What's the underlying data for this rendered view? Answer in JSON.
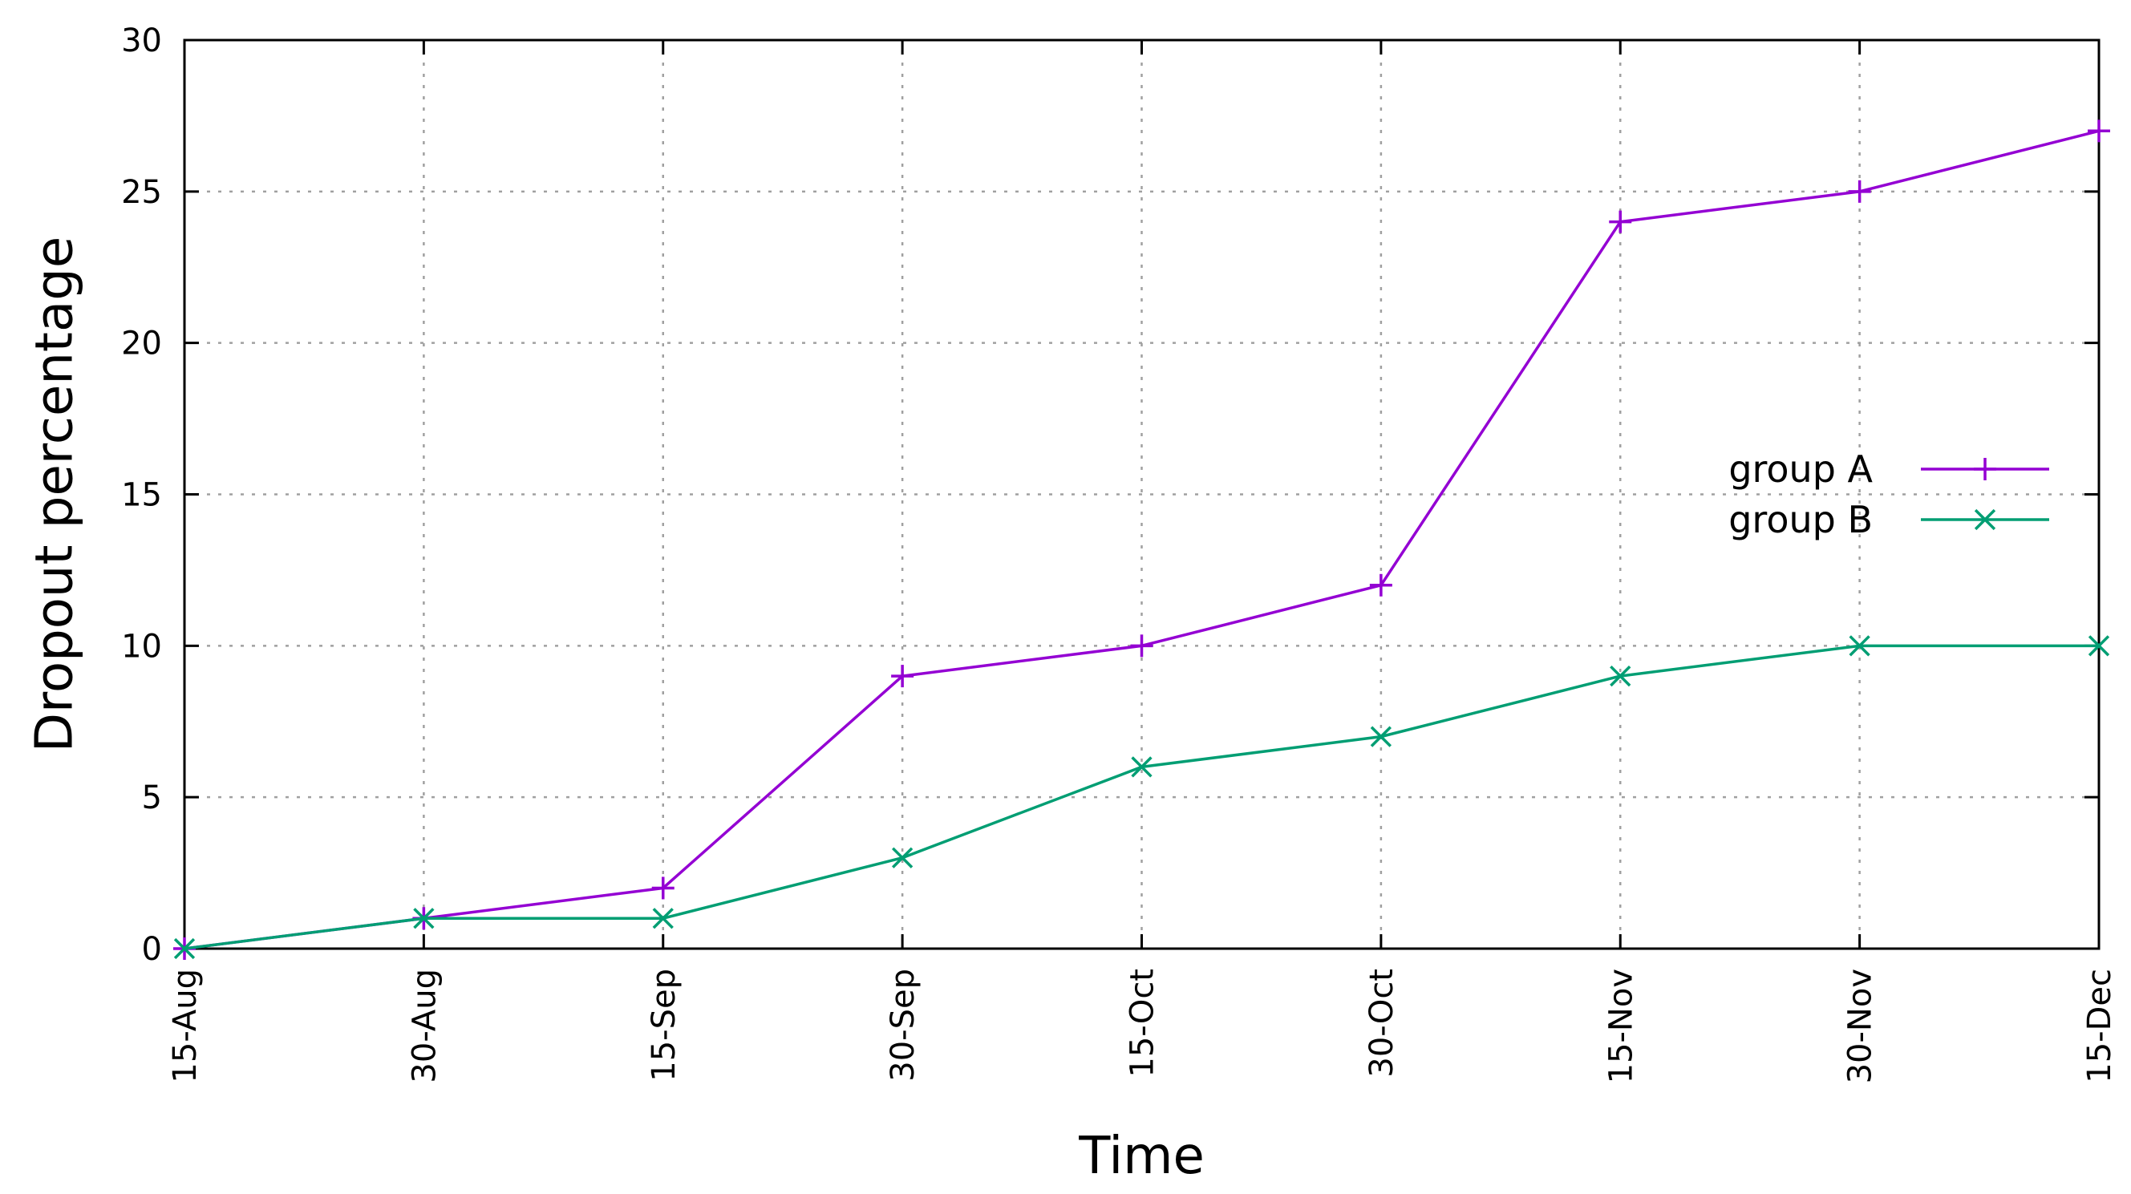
{
  "chart_data": {
    "type": "line",
    "title": "",
    "xlabel": "Time",
    "ylabel": "Dropout percentage",
    "categories": [
      "15-Aug",
      "30-Aug",
      "15-Sep",
      "30-Sep",
      "15-Oct",
      "30-Oct",
      "15-Nov",
      "30-Nov",
      "15-Dec"
    ],
    "ylim": [
      0,
      30
    ],
    "yticks": [
      0,
      5,
      10,
      15,
      20,
      25,
      30
    ],
    "grid": true,
    "legend_position": "right",
    "series": [
      {
        "name": "group A",
        "color": "#9400d3",
        "marker": "plus",
        "values": [
          0,
          1,
          2,
          9,
          10,
          12,
          24,
          25,
          27
        ]
      },
      {
        "name": "group B",
        "color": "#009e73",
        "marker": "cross",
        "values": [
          0,
          1,
          1,
          3,
          6,
          7,
          9,
          10,
          10
        ]
      }
    ]
  }
}
